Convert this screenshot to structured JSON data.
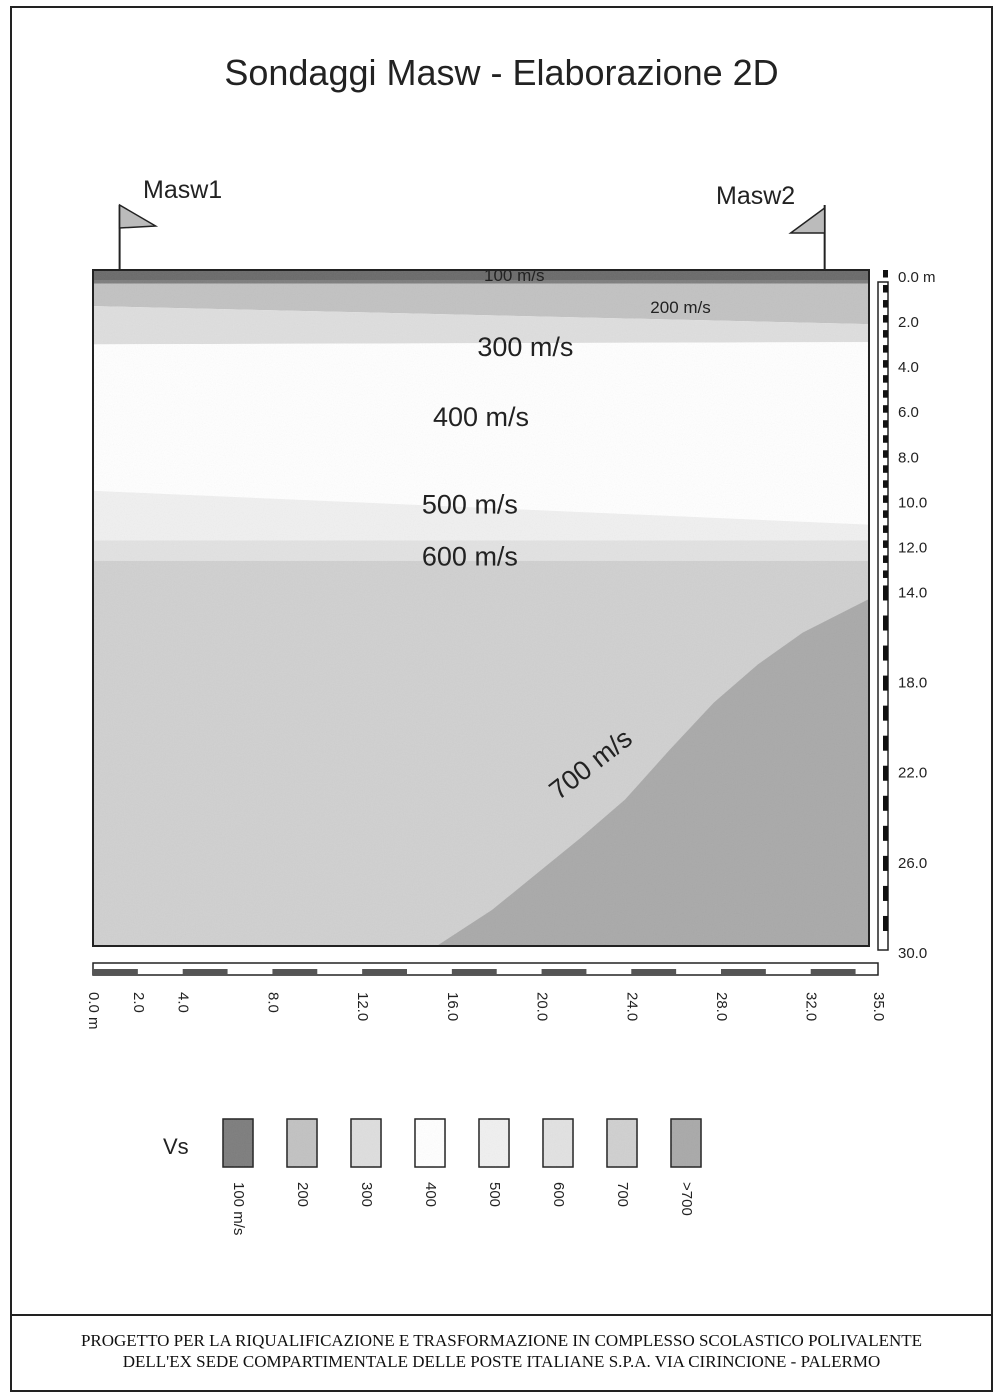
{
  "title": "Sondaggi Masw - Elaborazione 2D",
  "markers": [
    {
      "label": "Masw1",
      "x": 1.2
    },
    {
      "label": "Masw2",
      "x": 33.0
    }
  ],
  "chart_data": {
    "type": "heatmap",
    "title": "Sondaggi Masw - Elaborazione 2D",
    "x_range": [
      0,
      35
    ],
    "y_range": [
      0,
      30
    ],
    "x_ticks": [
      "0.0 m",
      "2.0",
      "4.0",
      "8.0",
      "12.0",
      "16.0",
      "20.0",
      "24.0",
      "28.0",
      "32.0",
      "35.0"
    ],
    "x_tick_values": [
      0,
      2,
      4,
      8,
      12,
      16,
      20,
      24,
      28,
      32,
      35
    ],
    "y_ticks": [
      "0.0 m",
      "2.0",
      "4.0",
      "6.0",
      "8.0",
      "10.0",
      "12.0",
      "14.0",
      "18.0",
      "22.0",
      "26.0",
      "30.0"
    ],
    "y_tick_values": [
      0,
      2,
      4,
      6,
      8,
      10,
      12,
      14,
      18,
      22,
      26,
      30
    ],
    "layers": [
      {
        "label": "100 m/s",
        "vs": 100,
        "top": [
          [
            0,
            0
          ],
          [
            35,
            0
          ]
        ],
        "bottom": [
          [
            0,
            0.6
          ],
          [
            35,
            0.6
          ]
        ],
        "label_pos": [
          19,
          0.3
        ]
      },
      {
        "label": "200 m/s",
        "vs": 200,
        "top": [
          [
            0,
            0.6
          ],
          [
            35,
            0.6
          ]
        ],
        "bottom": [
          [
            0,
            1.6
          ],
          [
            35,
            2.4
          ]
        ],
        "label_pos": [
          26.5,
          1.7
        ]
      },
      {
        "label": "300 m/s",
        "vs": 300,
        "top": [
          [
            0,
            1.6
          ],
          [
            35,
            2.4
          ]
        ],
        "bottom": [
          [
            0,
            3.3
          ],
          [
            35,
            3.2
          ]
        ],
        "label_pos": [
          19.5,
          3.5
        ]
      },
      {
        "label": "400 m/s",
        "vs": 400,
        "top": [
          [
            0,
            3.3
          ],
          [
            35,
            3.2
          ]
        ],
        "bottom": [
          [
            0,
            9.8
          ],
          [
            35,
            11.3
          ]
        ],
        "label_pos": [
          17.5,
          6.6
        ]
      },
      {
        "label": "500 m/s",
        "vs": 500,
        "top": [
          [
            0,
            9.8
          ],
          [
            35,
            11.3
          ]
        ],
        "bottom": [
          [
            0,
            12.0
          ],
          [
            35,
            12.0
          ]
        ],
        "label_pos": [
          17.0,
          10.5
        ]
      },
      {
        "label": "600 m/s",
        "vs": 600,
        "top": [
          [
            0,
            12.0
          ],
          [
            35,
            12.0
          ]
        ],
        "bottom": [
          [
            0,
            12.9
          ],
          [
            35,
            12.9
          ]
        ],
        "label_pos": [
          17.0,
          12.8
        ]
      },
      {
        "label": "700 m/s",
        "vs": 700,
        "top": [
          [
            0,
            12.9
          ],
          [
            35,
            12.9
          ]
        ],
        "bottom": [
          [
            0,
            30
          ],
          [
            35,
            30
          ]
        ],
        "label_pos": [
          22.5,
          22.0
        ]
      },
      {
        "label": "",
        "vs": 800,
        "top": [
          [
            35,
            14.6
          ],
          [
            34,
            15.1
          ],
          [
            32,
            16.1
          ],
          [
            30,
            17.5
          ],
          [
            28,
            19.2
          ],
          [
            26,
            21.3
          ],
          [
            24,
            23.5
          ],
          [
            22,
            25.2
          ],
          [
            20,
            26.8
          ],
          [
            18,
            28.4
          ],
          [
            15.5,
            30
          ]
        ],
        "bottom": [
          [
            35,
            30
          ],
          [
            35,
            30
          ]
        ]
      }
    ],
    "legend": {
      "title": "Vs",
      "items": [
        {
          "label": "100 m/s",
          "vs": 100
        },
        {
          "label": "200",
          "vs": 200
        },
        {
          "label": "300",
          "vs": 300
        },
        {
          "label": "400",
          "vs": 400
        },
        {
          "label": "500",
          "vs": 500
        },
        {
          "label": "600",
          "vs": 600
        },
        {
          "label": "700",
          "vs": 700
        },
        {
          "label": ">700",
          "vs": 800
        }
      ]
    },
    "colors": {
      "100": "#7d7d7d",
      "200": "#c2c2c2",
      "300": "#dedede",
      "400": "#ffffff",
      "500": "#f0f0f0",
      "600": "#e2e2e2",
      "700": "#d0d0d0",
      "800": "#a9a9a9"
    }
  },
  "footer": {
    "line1": "PROGETTO PER LA RIQUALIFICAZIONE E TRASFORMAZIONE IN COMPLESSO SCOLASTICO POLIVALENTE",
    "line2": "DELL'EX SEDE COMPARTIMENTALE DELLE POSTE ITALIANE S.P.A. VIA CIRINCIONE - PALERMO"
  }
}
